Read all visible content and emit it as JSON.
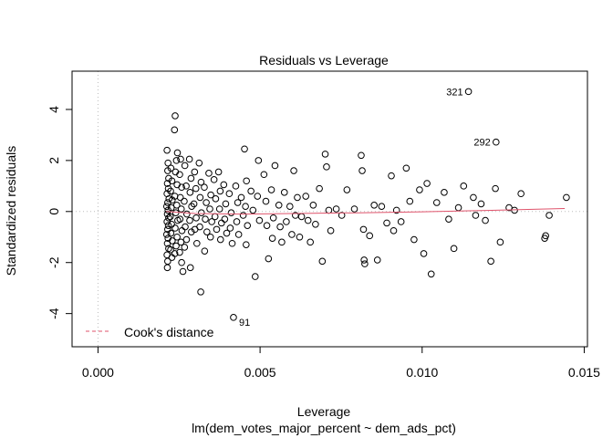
{
  "chart_data": {
    "type": "scatter",
    "title": "Residuals vs Leverage",
    "xlabel": "Leverage",
    "subtitle": "lm(dem_votes_major_percent ~ dem_ads_pct)",
    "ylabel": "Standardized residuals",
    "xlim": [
      -0.0008,
      0.0151
    ],
    "ylim": [
      -5.3,
      5.5
    ],
    "x_ticks": [
      {
        "value": 0.0,
        "label": "0.000"
      },
      {
        "value": 0.005,
        "label": "0.005"
      },
      {
        "value": 0.01,
        "label": "0.010"
      },
      {
        "value": 0.015,
        "label": "0.015"
      }
    ],
    "y_ticks": [
      {
        "value": -4,
        "label": "-4"
      },
      {
        "value": -2,
        "label": "-2"
      },
      {
        "value": 0,
        "label": "0"
      },
      {
        "value": 2,
        "label": "2"
      },
      {
        "value": 4,
        "label": "4"
      }
    ],
    "reference_lines": {
      "x": 0,
      "y": 0,
      "style": "dotted",
      "color": "#bdbdbd"
    },
    "smoother_color": "#df536b",
    "point_color": "#000000",
    "legend": {
      "position": "bottom-left",
      "label": "Cook's distance",
      "line_color": "#df536b",
      "line_style": "dashed"
    },
    "labeled_points": [
      {
        "label": "321",
        "x": 0.01143,
        "y": 4.7
      },
      {
        "label": "292",
        "x": 0.01228,
        "y": 2.72
      },
      {
        "label": "91",
        "x": 0.00418,
        "y": -4.15
      }
    ],
    "smooth": [
      {
        "x": 0.0021,
        "y": 0.0
      },
      {
        "x": 0.003,
        "y": -0.08
      },
      {
        "x": 0.0045,
        "y": -0.1
      },
      {
        "x": 0.006,
        "y": -0.08
      },
      {
        "x": 0.008,
        "y": -0.05
      },
      {
        "x": 0.01,
        "y": -0.01
      },
      {
        "x": 0.012,
        "y": 0.04
      },
      {
        "x": 0.0144,
        "y": 0.12
      }
    ],
    "points": [
      {
        "x": 0.00213,
        "y": 2.4
      },
      {
        "x": 0.00216,
        "y": 1.9
      },
      {
        "x": 0.00215,
        "y": 1.6
      },
      {
        "x": 0.00218,
        "y": 1.3
      },
      {
        "x": 0.00214,
        "y": 1.1
      },
      {
        "x": 0.00217,
        "y": 0.9
      },
      {
        "x": 0.00213,
        "y": 0.7
      },
      {
        "x": 0.00219,
        "y": 0.5
      },
      {
        "x": 0.00215,
        "y": 0.35
      },
      {
        "x": 0.00212,
        "y": 0.2
      },
      {
        "x": 0.00216,
        "y": 0.05
      },
      {
        "x": 0.00214,
        "y": -0.1
      },
      {
        "x": 0.00218,
        "y": -0.25
      },
      {
        "x": 0.00213,
        "y": -0.4
      },
      {
        "x": 0.00217,
        "y": -0.55
      },
      {
        "x": 0.00215,
        "y": -0.7
      },
      {
        "x": 0.00212,
        "y": -0.9
      },
      {
        "x": 0.00216,
        "y": -1.05
      },
      {
        "x": 0.00214,
        "y": -1.25
      },
      {
        "x": 0.00218,
        "y": -1.45
      },
      {
        "x": 0.00213,
        "y": -1.7
      },
      {
        "x": 0.00215,
        "y": -1.95
      },
      {
        "x": 0.00214,
        "y": -2.2
      },
      {
        "x": 0.00225,
        "y": 1.7
      },
      {
        "x": 0.00228,
        "y": 1.2
      },
      {
        "x": 0.00224,
        "y": 0.8
      },
      {
        "x": 0.00229,
        "y": 0.45
      },
      {
        "x": 0.00226,
        "y": 0.15
      },
      {
        "x": 0.00223,
        "y": -0.2
      },
      {
        "x": 0.00227,
        "y": -0.5
      },
      {
        "x": 0.00225,
        "y": -0.85
      },
      {
        "x": 0.00229,
        "y": -1.15
      },
      {
        "x": 0.00224,
        "y": -1.5
      },
      {
        "x": 0.00228,
        "y": -1.8
      },
      {
        "x": 0.00238,
        "y": 3.75
      },
      {
        "x": 0.00236,
        "y": 3.2
      },
      {
        "x": 0.00245,
        "y": 2.3
      },
      {
        "x": 0.00242,
        "y": 2.0
      },
      {
        "x": 0.00239,
        "y": 1.55
      },
      {
        "x": 0.00244,
        "y": 1.05
      },
      {
        "x": 0.00237,
        "y": 0.6
      },
      {
        "x": 0.00243,
        "y": 0.25
      },
      {
        "x": 0.0024,
        "y": -0.05
      },
      {
        "x": 0.00246,
        "y": -0.35
      },
      {
        "x": 0.00238,
        "y": -0.65
      },
      {
        "x": 0.00244,
        "y": -1.0
      },
      {
        "x": 0.00241,
        "y": -1.35
      },
      {
        "x": 0.00237,
        "y": -1.65
      },
      {
        "x": 0.00255,
        "y": 2.05
      },
      {
        "x": 0.00252,
        "y": 1.45
      },
      {
        "x": 0.00258,
        "y": 0.95
      },
      {
        "x": 0.00254,
        "y": 0.55
      },
      {
        "x": 0.00257,
        "y": 0.1
      },
      {
        "x": 0.00253,
        "y": -0.3
      },
      {
        "x": 0.00259,
        "y": -0.75
      },
      {
        "x": 0.00256,
        "y": -1.2
      },
      {
        "x": 0.00252,
        "y": -1.6
      },
      {
        "x": 0.00258,
        "y": -2.0
      },
      {
        "x": 0.00262,
        "y": -2.35
      },
      {
        "x": 0.00268,
        "y": 1.8
      },
      {
        "x": 0.00272,
        "y": 1.0
      },
      {
        "x": 0.00266,
        "y": 0.4
      },
      {
        "x": 0.00274,
        "y": -0.1
      },
      {
        "x": 0.00269,
        "y": -0.6
      },
      {
        "x": 0.00273,
        "y": -1.1
      },
      {
        "x": 0.00267,
        "y": -1.4
      },
      {
        "x": 0.00282,
        "y": 2.05
      },
      {
        "x": 0.00287,
        "y": 1.3
      },
      {
        "x": 0.00284,
        "y": 0.75
      },
      {
        "x": 0.00289,
        "y": 0.2
      },
      {
        "x": 0.00283,
        "y": -0.35
      },
      {
        "x": 0.00288,
        "y": -0.8
      },
      {
        "x": 0.00285,
        "y": -2.2
      },
      {
        "x": 0.00298,
        "y": 1.55
      },
      {
        "x": 0.00302,
        "y": 0.9
      },
      {
        "x": 0.00296,
        "y": 0.3
      },
      {
        "x": 0.00303,
        "y": -0.25
      },
      {
        "x": 0.00299,
        "y": -0.7
      },
      {
        "x": 0.00305,
        "y": -1.25
      },
      {
        "x": 0.00312,
        "y": 1.9
      },
      {
        "x": 0.00318,
        "y": 1.15
      },
      {
        "x": 0.00315,
        "y": 0.55
      },
      {
        "x": 0.00319,
        "y": -0.05
      },
      {
        "x": 0.00314,
        "y": -0.6
      },
      {
        "x": 0.00317,
        "y": -3.15
      },
      {
        "x": 0.00328,
        "y": 0.95
      },
      {
        "x": 0.00334,
        "y": 0.35
      },
      {
        "x": 0.00331,
        "y": -0.3
      },
      {
        "x": 0.00336,
        "y": -0.8
      },
      {
        "x": 0.00329,
        "y": -1.55
      },
      {
        "x": 0.00342,
        "y": 1.5
      },
      {
        "x": 0.00348,
        "y": 0.65
      },
      {
        "x": 0.00345,
        "y": 0.1
      },
      {
        "x": 0.00351,
        "y": -0.4
      },
      {
        "x": 0.00347,
        "y": -1.0
      },
      {
        "x": 0.00358,
        "y": 1.25
      },
      {
        "x": 0.00363,
        "y": 0.5
      },
      {
        "x": 0.00361,
        "y": -0.2
      },
      {
        "x": 0.00366,
        "y": -0.7
      },
      {
        "x": 0.00372,
        "y": 1.55
      },
      {
        "x": 0.00377,
        "y": 0.8
      },
      {
        "x": 0.00375,
        "y": 0.1
      },
      {
        "x": 0.00381,
        "y": -0.45
      },
      {
        "x": 0.00378,
        "y": -1.1
      },
      {
        "x": 0.00388,
        "y": 1.05
      },
      {
        "x": 0.00394,
        "y": 0.3
      },
      {
        "x": 0.00391,
        "y": -0.3
      },
      {
        "x": 0.00397,
        "y": -0.85
      },
      {
        "x": 0.00405,
        "y": 0.7
      },
      {
        "x": 0.00411,
        "y": -0.05
      },
      {
        "x": 0.00408,
        "y": -0.65
      },
      {
        "x": 0.00414,
        "y": -1.25
      },
      {
        "x": 0.00418,
        "y": -4.15
      },
      {
        "x": 0.00425,
        "y": 1.0
      },
      {
        "x": 0.00431,
        "y": 0.35
      },
      {
        "x": 0.00428,
        "y": -0.4
      },
      {
        "x": 0.00434,
        "y": -0.9
      },
      {
        "x": 0.00442,
        "y": 0.55
      },
      {
        "x": 0.00448,
        "y": -0.15
      },
      {
        "x": 0.00452,
        "y": 2.45
      },
      {
        "x": 0.00458,
        "y": 1.2
      },
      {
        "x": 0.00455,
        "y": 0.2
      },
      {
        "x": 0.00461,
        "y": -0.55
      },
      {
        "x": 0.00457,
        "y": -1.3
      },
      {
        "x": 0.00472,
        "y": 0.8
      },
      {
        "x": 0.00478,
        "y": 0.05
      },
      {
        "x": 0.00485,
        "y": -2.55
      },
      {
        "x": 0.00492,
        "y": 0.6
      },
      {
        "x": 0.00498,
        "y": -0.35
      },
      {
        "x": 0.00495,
        "y": 2.0
      },
      {
        "x": 0.00512,
        "y": 1.45
      },
      {
        "x": 0.00518,
        "y": 0.4
      },
      {
        "x": 0.00521,
        "y": -0.55
      },
      {
        "x": 0.00526,
        "y": -1.85
      },
      {
        "x": 0.00535,
        "y": 0.85
      },
      {
        "x": 0.00541,
        "y": -0.25
      },
      {
        "x": 0.00538,
        "y": -1.05
      },
      {
        "x": 0.00546,
        "y": 1.8
      },
      {
        "x": 0.00558,
        "y": 0.25
      },
      {
        "x": 0.00562,
        "y": -0.6
      },
      {
        "x": 0.00567,
        "y": -1.2
      },
      {
        "x": 0.00575,
        "y": 0.75
      },
      {
        "x": 0.00581,
        "y": -0.4
      },
      {
        "x": 0.00592,
        "y": 0.2
      },
      {
        "x": 0.00598,
        "y": -0.9
      },
      {
        "x": 0.00604,
        "y": 1.6
      },
      {
        "x": 0.00609,
        "y": -0.15
      },
      {
        "x": 0.00615,
        "y": 0.55
      },
      {
        "x": 0.00622,
        "y": -1.0
      },
      {
        "x": 0.00628,
        "y": -0.2
      },
      {
        "x": 0.00641,
        "y": 0.6
      },
      {
        "x": 0.00648,
        "y": -0.35
      },
      {
        "x": 0.00655,
        "y": -1.2
      },
      {
        "x": 0.00664,
        "y": 0.25
      },
      {
        "x": 0.00671,
        "y": -0.5
      },
      {
        "x": 0.00683,
        "y": 0.9
      },
      {
        "x": 0.00692,
        "y": -1.95
      },
      {
        "x": 0.00701,
        "y": 2.25
      },
      {
        "x": 0.00705,
        "y": 1.75
      },
      {
        "x": 0.00712,
        "y": 0.05
      },
      {
        "x": 0.00718,
        "y": -0.75
      },
      {
        "x": 0.00735,
        "y": 0.1
      },
      {
        "x": 0.00752,
        "y": -0.15
      },
      {
        "x": 0.00768,
        "y": 0.85
      },
      {
        "x": 0.00791,
        "y": 0.1
      },
      {
        "x": 0.00812,
        "y": 2.2
      },
      {
        "x": 0.00815,
        "y": 1.6
      },
      {
        "x": 0.00819,
        "y": -0.7
      },
      {
        "x": 0.00821,
        "y": -1.9
      },
      {
        "x": 0.00823,
        "y": -2.05
      },
      {
        "x": 0.00838,
        "y": -0.95
      },
      {
        "x": 0.00852,
        "y": 0.25
      },
      {
        "x": 0.00862,
        "y": -1.9
      },
      {
        "x": 0.00875,
        "y": 0.2
      },
      {
        "x": 0.00891,
        "y": -0.45
      },
      {
        "x": 0.00905,
        "y": 1.4
      },
      {
        "x": 0.00912,
        "y": -0.75
      },
      {
        "x": 0.00921,
        "y": 0.05
      },
      {
        "x": 0.00935,
        "y": -0.4
      },
      {
        "x": 0.00951,
        "y": 1.7
      },
      {
        "x": 0.00962,
        "y": 0.4
      },
      {
        "x": 0.00975,
        "y": -1.1
      },
      {
        "x": 0.00992,
        "y": 0.85
      },
      {
        "x": 0.01005,
        "y": -1.65
      },
      {
        "x": 0.01015,
        "y": 1.1
      },
      {
        "x": 0.01028,
        "y": -2.45
      },
      {
        "x": 0.01045,
        "y": 0.35
      },
      {
        "x": 0.01068,
        "y": 0.75
      },
      {
        "x": 0.01082,
        "y": -0.3
      },
      {
        "x": 0.01098,
        "y": -1.45
      },
      {
        "x": 0.01112,
        "y": 0.15
      },
      {
        "x": 0.01128,
        "y": 1.0
      },
      {
        "x": 0.01143,
        "y": 4.7
      },
      {
        "x": 0.01158,
        "y": 0.55
      },
      {
        "x": 0.01165,
        "y": -0.15
      },
      {
        "x": 0.01182,
        "y": 0.3
      },
      {
        "x": 0.01195,
        "y": -0.35
      },
      {
        "x": 0.01212,
        "y": -1.95
      },
      {
        "x": 0.01228,
        "y": 2.72
      },
      {
        "x": 0.01226,
        "y": 0.9
      },
      {
        "x": 0.01241,
        "y": -1.2
      },
      {
        "x": 0.01268,
        "y": 0.15
      },
      {
        "x": 0.01285,
        "y": 0.05
      },
      {
        "x": 0.01305,
        "y": 0.7
      },
      {
        "x": 0.01378,
        "y": -1.05
      },
      {
        "x": 0.01381,
        "y": -0.95
      },
      {
        "x": 0.01392,
        "y": -0.15
      },
      {
        "x": 0.01445,
        "y": 0.55
      }
    ]
  }
}
